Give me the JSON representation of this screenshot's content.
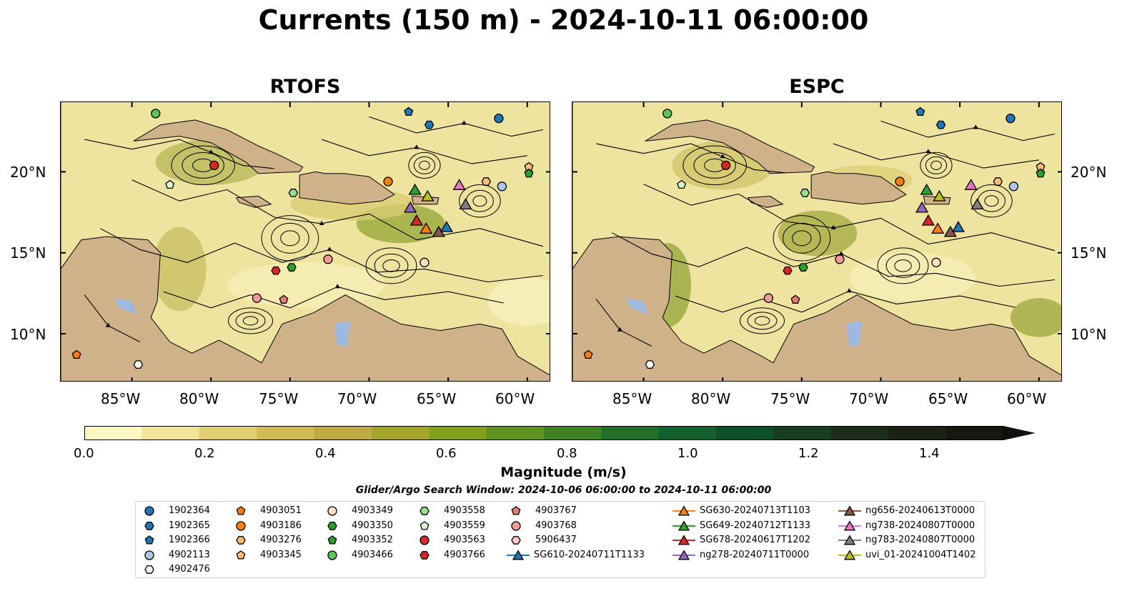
{
  "title": "Currents (150 m) - 2024-10-11 06:00:00",
  "panels": [
    {
      "name": "RTOFS"
    },
    {
      "name": "ESPC"
    }
  ],
  "axes": {
    "lon_ticks": [
      "85°W",
      "80°W",
      "75°W",
      "70°W",
      "65°W",
      "60°W"
    ],
    "lat_ticks": [
      "20°N",
      "15°N",
      "10°N"
    ],
    "lon_range": [
      -89.5,
      -58.5
    ],
    "lat_range": [
      7.0,
      24.3
    ]
  },
  "colorbar": {
    "label": "Magnitude (m/s)",
    "ticks": [
      "0.0",
      "0.2",
      "0.4",
      "0.6",
      "0.8",
      "1.0",
      "1.2",
      "1.4"
    ],
    "colors": [
      "#fdf7c4",
      "#f1e39a",
      "#e2cf72",
      "#d2bb54",
      "#c1a944",
      "#a4a52a",
      "#83a01d",
      "#5f9220",
      "#3e8225",
      "#237128",
      "#12612e",
      "#0d4f2b",
      "#173d22",
      "#1c2d1a",
      "#1b2214",
      "#16180f"
    ]
  },
  "search_window": "Glider/Argo Search Window: 2024-10-06 06:00:00 to 2024-10-11 06:00:00",
  "legend": [
    {
      "label": "1902364",
      "marker": "circle",
      "color": "#1f77b4"
    },
    {
      "label": "1902365",
      "marker": "hexagon",
      "color": "#1f77b4"
    },
    {
      "label": "1902366",
      "marker": "pentagon",
      "color": "#1f77b4"
    },
    {
      "label": "4902113",
      "marker": "circle",
      "color": "#aec7e8"
    },
    {
      "label": "4902476",
      "marker": "hexagon",
      "color": "#ffffff"
    },
    {
      "label": "4903051",
      "marker": "pentagon",
      "color": "#ff7f0e"
    },
    {
      "label": "4903186",
      "marker": "circle",
      "color": "#ff7f0e"
    },
    {
      "label": "4903276",
      "marker": "hexagon",
      "color": "#ffbb78"
    },
    {
      "label": "4903345",
      "marker": "pentagon",
      "color": "#ffbb78"
    },
    {
      "label": "4903349",
      "marker": "circle",
      "color": "#ffe0c4"
    },
    {
      "label": "4903350",
      "marker": "hexagon",
      "color": "#2ca02c"
    },
    {
      "label": "4903352",
      "marker": "pentagon",
      "color": "#2ca02c"
    },
    {
      "label": "4903466",
      "marker": "circle",
      "color": "#5cc45c"
    },
    {
      "label": "4903558",
      "marker": "hexagon",
      "color": "#98df8a"
    },
    {
      "label": "4903559",
      "marker": "pentagon",
      "color": "#d8f5cc"
    },
    {
      "label": "4903563",
      "marker": "circle",
      "color": "#d62728"
    },
    {
      "label": "4903766",
      "marker": "hexagon",
      "color": "#d62728"
    },
    {
      "label": "4903767",
      "marker": "pentagon",
      "color": "#e8797a"
    },
    {
      "label": "4903768",
      "marker": "circle",
      "color": "#f09a9a"
    },
    {
      "label": "5906437",
      "marker": "hexagon",
      "color": "#ffc9c9"
    },
    {
      "label": "SG610-20240711T1133",
      "marker": "triangle-line",
      "color": "#1f77b4"
    },
    {
      "label": "SG630-20240713T1103",
      "marker": "triangle-line",
      "color": "#ff7f0e"
    },
    {
      "label": "SG649-20240712T1133",
      "marker": "triangle-line",
      "color": "#2ca02c"
    },
    {
      "label": "SG678-20240617T1202",
      "marker": "triangle-line",
      "color": "#d62728"
    },
    {
      "label": "ng278-20240711T0000",
      "marker": "triangle-line",
      "color": "#9467bd"
    },
    {
      "label": "ng656-20240613T0000",
      "marker": "triangle-line",
      "color": "#8c564b"
    },
    {
      "label": "ng738-20240807T0000",
      "marker": "triangle-line",
      "color": "#e377c2"
    },
    {
      "label": "ng783-20240807T0000",
      "marker": "triangle-line",
      "color": "#7f7f7f"
    },
    {
      "label": "uvi_01-20241004T1402",
      "marker": "triangle-line",
      "color": "#bcbd22"
    }
  ],
  "chart_data": [
    {
      "type": "scatter",
      "panel": "RTOFS",
      "x_unit": "longitude (deg)",
      "y_unit": "latitude (deg)",
      "points": [
        {
          "id": "4903466",
          "x": -83.5,
          "y": 23.6
        },
        {
          "id": "1902366",
          "x": -67.5,
          "y": 23.7
        },
        {
          "id": "1902365",
          "x": -66.2,
          "y": 22.9
        },
        {
          "id": "1902364",
          "x": -61.8,
          "y": 23.3
        },
        {
          "id": "4903563",
          "x": -79.8,
          "y": 20.4
        },
        {
          "id": "4903559",
          "x": -82.6,
          "y": 19.2
        },
        {
          "id": "4903558",
          "x": -74.8,
          "y": 18.7
        },
        {
          "id": "4903186",
          "x": -68.8,
          "y": 19.4
        },
        {
          "id": "4903276",
          "x": -62.6,
          "y": 19.4
        },
        {
          "id": "4902113",
          "x": -61.6,
          "y": 19.1
        },
        {
          "id": "4903345",
          "x": -59.9,
          "y": 20.3
        },
        {
          "id": "4903352",
          "x": -59.9,
          "y": 19.9
        },
        {
          "id": "4903766",
          "x": -75.9,
          "y": 13.9
        },
        {
          "id": "4903350",
          "x": -74.9,
          "y": 14.1
        },
        {
          "id": "4903768",
          "x": -72.6,
          "y": 14.6
        },
        {
          "id": "4903349",
          "x": -66.5,
          "y": 14.4
        },
        {
          "id": "4903768b",
          "x": -77.1,
          "y": 12.2
        },
        {
          "id": "4903767",
          "x": -75.4,
          "y": 12.1
        },
        {
          "id": "4903051",
          "x": -88.5,
          "y": 8.7
        },
        {
          "id": "4902476",
          "x": -84.6,
          "y": 8.1
        },
        {
          "id": "SG649-20240712T1133",
          "x": -67.1,
          "y": 18.9
        },
        {
          "id": "uvi_01-20241004T1402",
          "x": -66.3,
          "y": 18.5
        },
        {
          "id": "ng738-20240807T0000",
          "x": -64.3,
          "y": 19.2
        },
        {
          "id": "ng783-20240807T0000",
          "x": -63.9,
          "y": 18.0
        },
        {
          "id": "ng278-20240711T0000",
          "x": -67.4,
          "y": 17.8
        },
        {
          "id": "SG678-20240617T1202",
          "x": -67.0,
          "y": 17.0
        },
        {
          "id": "SG630-20240713T1103",
          "x": -66.4,
          "y": 16.5
        },
        {
          "id": "ng656-20240613T0000",
          "x": -65.6,
          "y": 16.3
        },
        {
          "id": "SG610-20240711T1133",
          "x": -65.1,
          "y": 16.6
        }
      ]
    },
    {
      "type": "scatter",
      "panel": "ESPC",
      "x_unit": "longitude (deg)",
      "y_unit": "latitude (deg)",
      "points": [
        {
          "id": "4903466",
          "x": -83.5,
          "y": 23.6
        },
        {
          "id": "1902366",
          "x": -67.5,
          "y": 23.7
        },
        {
          "id": "1902365",
          "x": -66.2,
          "y": 22.9
        },
        {
          "id": "1902364",
          "x": -61.8,
          "y": 23.3
        },
        {
          "id": "4903563",
          "x": -79.8,
          "y": 20.4
        },
        {
          "id": "4903559",
          "x": -82.6,
          "y": 19.2
        },
        {
          "id": "4903558",
          "x": -74.8,
          "y": 18.7
        },
        {
          "id": "4903186",
          "x": -68.8,
          "y": 19.4
        },
        {
          "id": "4903276",
          "x": -62.6,
          "y": 19.4
        },
        {
          "id": "4902113",
          "x": -61.6,
          "y": 19.1
        },
        {
          "id": "4903345",
          "x": -59.9,
          "y": 20.3
        },
        {
          "id": "4903352",
          "x": -59.9,
          "y": 19.9
        },
        {
          "id": "4903766",
          "x": -75.9,
          "y": 13.9
        },
        {
          "id": "4903350",
          "x": -74.9,
          "y": 14.1
        },
        {
          "id": "4903768",
          "x": -72.6,
          "y": 14.6
        },
        {
          "id": "4903349",
          "x": -66.5,
          "y": 14.4
        },
        {
          "id": "4903768b",
          "x": -77.1,
          "y": 12.2
        },
        {
          "id": "4903767",
          "x": -75.4,
          "y": 12.1
        },
        {
          "id": "4903051",
          "x": -88.5,
          "y": 8.7
        },
        {
          "id": "4902476",
          "x": -84.6,
          "y": 8.1
        },
        {
          "id": "SG649-20240712T1133",
          "x": -67.1,
          "y": 18.9
        },
        {
          "id": "uvi_01-20241004T1402",
          "x": -66.3,
          "y": 18.5
        },
        {
          "id": "ng738-20240807T0000",
          "x": -64.3,
          "y": 19.2
        },
        {
          "id": "ng783-20240807T0000",
          "x": -63.9,
          "y": 18.0
        },
        {
          "id": "ng278-20240711T0000",
          "x": -67.4,
          "y": 17.8
        },
        {
          "id": "SG678-20240617T1202",
          "x": -67.0,
          "y": 17.0
        },
        {
          "id": "SG630-20240713T1103",
          "x": -66.4,
          "y": 16.5
        },
        {
          "id": "ng656-20240613T0000",
          "x": -65.6,
          "y": 16.3
        },
        {
          "id": "SG610-20240711T1133",
          "x": -65.1,
          "y": 16.6
        }
      ]
    }
  ]
}
